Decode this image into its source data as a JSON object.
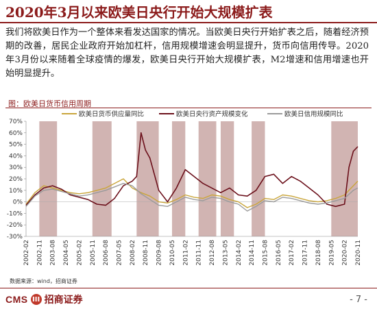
{
  "slide": {
    "title": "2020年3月以来欧美日央行开始大规模扩表",
    "paragraph": "我们将欧美日作为一个整体来看发达国家的情况。当欧美日央行开始扩表之后，随着经济预期的改善，居民企业政府开始加杠杆，信用规模增速会明显提升，货币向信用传导。2020年3月份以来随着全球疫情的爆发，欧美日央行开始大规模扩表，M2增速和信用增速也开始明显提升。",
    "source": "数据来源：wind，招商证券",
    "logo_text": "CMS",
    "logo_badge": "III",
    "logo_cn": "招商证券",
    "page_number": "- 7 -"
  },
  "colors": {
    "accent": "#8b1a1a",
    "shade": "#c9a7a5",
    "m2": "#c9a53a",
    "assets": "#6b0f1a",
    "credit": "#9a9a9a"
  },
  "chart_data": {
    "type": "line",
    "title": "图：欧美日货币信用周期",
    "xlabel": "",
    "ylabel": "",
    "ylim": [
      -30,
      70
    ],
    "yticks": [
      "70%",
      "60%",
      "50%",
      "40%",
      "30%",
      "20%",
      "10%",
      "0%",
      "-10%",
      "-20%",
      "-30%"
    ],
    "ytick_values": [
      70,
      60,
      50,
      40,
      30,
      20,
      10,
      0,
      -10,
      -20,
      -30
    ],
    "x_ticks": [
      "2002-02",
      "2002-11",
      "2003-08",
      "2004-05",
      "2005-02",
      "2005-11",
      "2006-08",
      "2007-05",
      "2008-02",
      "2008-11",
      "2009-08",
      "2010-05",
      "2011-02",
      "2011-11",
      "2012-08",
      "2013-05",
      "2014-02",
      "2014-11",
      "2015-08",
      "2016-05",
      "2017-02",
      "2017-11",
      "2018-08",
      "2019-05",
      "2020-02",
      "2020-11"
    ],
    "shaded_periods": [
      [
        "2002-11",
        "2003-11"
      ],
      [
        "2005-11",
        "2006-12"
      ],
      [
        "2008-05",
        "2009-08"
      ],
      [
        "2010-05",
        "2011-02"
      ],
      [
        "2011-11",
        "2012-11"
      ],
      [
        "2013-02",
        "2013-11"
      ],
      [
        "2014-11",
        "2015-08"
      ],
      [
        "2019-05",
        "2020-11"
      ]
    ],
    "series": [
      {
        "name": "欧美日货币供应量同比",
        "x": [
          "2002-02",
          "2002-08",
          "2003-02",
          "2003-08",
          "2004-02",
          "2004-08",
          "2005-02",
          "2005-08",
          "2006-02",
          "2006-08",
          "2007-02",
          "2007-08",
          "2008-02",
          "2008-08",
          "2009-02",
          "2009-08",
          "2010-02",
          "2010-08",
          "2011-02",
          "2011-08",
          "2012-02",
          "2012-08",
          "2013-02",
          "2013-08",
          "2014-02",
          "2014-08",
          "2015-02",
          "2015-08",
          "2016-02",
          "2016-08",
          "2017-02",
          "2017-08",
          "2018-02",
          "2018-08",
          "2019-02",
          "2019-08",
          "2020-02",
          "2020-08",
          "2020-11"
        ],
        "values": [
          -2,
          8,
          14,
          12,
          10,
          8,
          7,
          8,
          10,
          12,
          16,
          20,
          12,
          8,
          5,
          0,
          -1,
          2,
          6,
          4,
          3,
          6,
          5,
          2,
          0,
          -5,
          -2,
          3,
          2,
          6,
          5,
          3,
          1,
          0,
          1,
          3,
          6,
          14,
          18
        ]
      },
      {
        "name": "欧美日央行资产规模变化",
        "x": [
          "2002-02",
          "2002-08",
          "2003-02",
          "2003-08",
          "2004-02",
          "2004-08",
          "2005-02",
          "2005-08",
          "2006-02",
          "2006-08",
          "2007-02",
          "2007-08",
          "2008-02",
          "2008-05",
          "2008-08",
          "2008-11",
          "2009-02",
          "2009-08",
          "2010-02",
          "2010-08",
          "2011-02",
          "2011-08",
          "2012-02",
          "2012-08",
          "2013-02",
          "2013-08",
          "2014-02",
          "2014-08",
          "2015-02",
          "2015-08",
          "2016-02",
          "2016-08",
          "2017-02",
          "2017-08",
          "2018-02",
          "2018-08",
          "2019-02",
          "2019-08",
          "2020-02",
          "2020-05",
          "2020-08",
          "2020-11"
        ],
        "values": [
          -3,
          6,
          12,
          14,
          11,
          6,
          4,
          2,
          -2,
          -3,
          3,
          14,
          18,
          22,
          60,
          45,
          38,
          10,
          0,
          12,
          28,
          22,
          16,
          12,
          8,
          12,
          6,
          5,
          10,
          22,
          24,
          16,
          22,
          18,
          12,
          6,
          -2,
          -4,
          -2,
          30,
          44,
          48
        ]
      },
      {
        "name": "欧美日信用规模同比",
        "x": [
          "2002-02",
          "2002-08",
          "2003-02",
          "2003-08",
          "2004-02",
          "2004-08",
          "2005-02",
          "2005-08",
          "2006-02",
          "2006-08",
          "2007-02",
          "2007-08",
          "2008-02",
          "2008-08",
          "2009-02",
          "2009-08",
          "2010-02",
          "2010-08",
          "2011-02",
          "2011-08",
          "2012-02",
          "2012-08",
          "2013-02",
          "2013-08",
          "2014-02",
          "2014-08",
          "2015-02",
          "2015-08",
          "2016-02",
          "2016-08",
          "2017-02",
          "2017-08",
          "2018-02",
          "2018-08",
          "2019-02",
          "2019-08",
          "2020-02",
          "2020-08",
          "2020-11"
        ],
        "values": [
          -4,
          5,
          10,
          11,
          9,
          7,
          5,
          6,
          8,
          10,
          13,
          16,
          14,
          7,
          2,
          -3,
          -4,
          0,
          4,
          2,
          1,
          4,
          3,
          0,
          -2,
          -8,
          -4,
          1,
          0,
          4,
          3,
          1,
          -1,
          -2,
          -1,
          1,
          3,
          10,
          12
        ]
      }
    ]
  }
}
